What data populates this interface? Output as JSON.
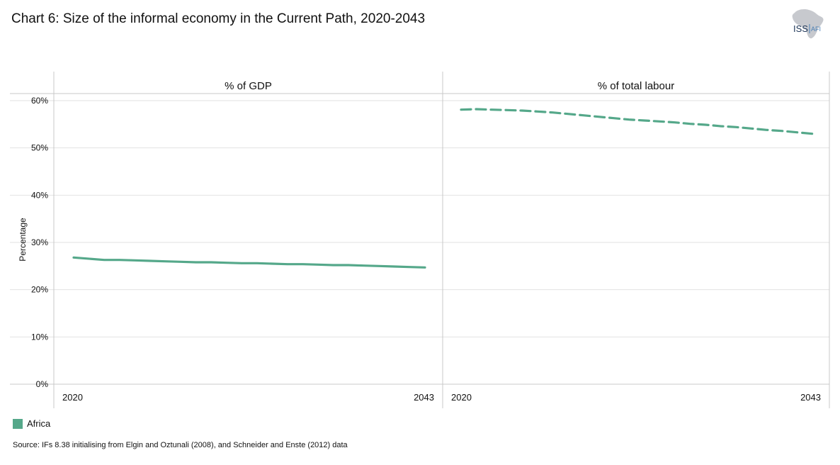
{
  "title": "Chart 6: Size of the informal economy in the Current Path, 2020-2043",
  "logo": {
    "text_main": "ISS",
    "text_sub": "AFI",
    "icon": "africa-map-icon"
  },
  "colors": {
    "africa": "#55a88a",
    "grid": "#e2e2e2",
    "frame": "#c8c8c8"
  },
  "chart_data": {
    "type": "line",
    "ylabel": "Percentage",
    "ylim": [
      0,
      60
    ],
    "yticks": [
      "0%",
      "10%",
      "20%",
      "30%",
      "40%",
      "50%",
      "60%"
    ],
    "yticks_values": [
      0,
      10,
      20,
      30,
      40,
      50,
      60
    ],
    "grid": true,
    "legend_position": "bottom-left",
    "panels": [
      {
        "label": "% of GDP",
        "xlabels": [
          "2020",
          "2043"
        ],
        "series": [
          {
            "name": "Africa",
            "style": "solid",
            "x": [
              2020,
              2022,
              2023,
              2024,
              2025,
              2026,
              2027,
              2028,
              2029,
              2030,
              2031,
              2032,
              2033,
              2034,
              2035,
              2036,
              2037,
              2038,
              2039,
              2040,
              2041,
              2042,
              2043
            ],
            "y": [
              26.8,
              26.3,
              26.3,
              26.2,
              26.1,
              26.0,
              25.9,
              25.8,
              25.8,
              25.7,
              25.6,
              25.6,
              25.5,
              25.4,
              25.4,
              25.3,
              25.2,
              25.2,
              25.1,
              25.0,
              24.9,
              24.8,
              24.7
            ]
          }
        ]
      },
      {
        "label": "% of total labour",
        "xlabels": [
          "2020",
          "2043"
        ],
        "series": [
          {
            "name": "Africa",
            "style": "dashed",
            "x": [
              2020,
              2021,
              2022,
              2023,
              2024,
              2025,
              2026,
              2027,
              2028,
              2029,
              2030,
              2031,
              2032,
              2033,
              2034,
              2035,
              2036,
              2037,
              2038,
              2039,
              2040,
              2041,
              2042,
              2043
            ],
            "y": [
              58.1,
              58.2,
              58.1,
              58.0,
              57.9,
              57.7,
              57.5,
              57.2,
              56.9,
              56.6,
              56.3,
              56.0,
              55.8,
              55.6,
              55.4,
              55.1,
              54.9,
              54.6,
              54.4,
              54.1,
              53.8,
              53.6,
              53.3,
              53.0
            ]
          }
        ]
      }
    ]
  },
  "legend": [
    {
      "label": "Africa",
      "color": "#55a88a"
    }
  ],
  "source": "Source: IFs 8.38 initialising  from Elgin and Oztunali (2008), and Schneider and Enste (2012) data"
}
